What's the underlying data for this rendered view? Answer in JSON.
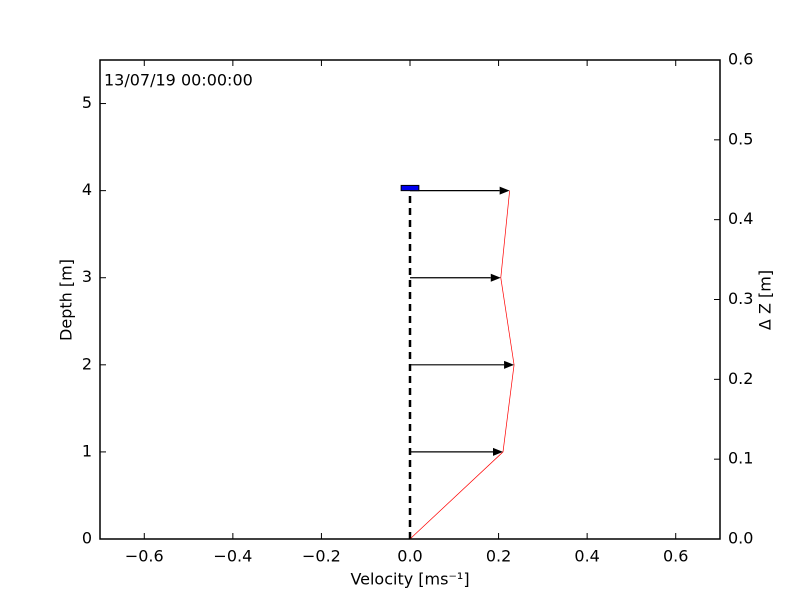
{
  "chart_data": {
    "type": "velocity-profile",
    "annotation": "13/07/19 00:00:00",
    "x_label": "Velocity [ms⁻¹]",
    "y_label": "Depth [m]",
    "y2_label": "Δ Z [m]",
    "xlim": [
      -0.7,
      0.7
    ],
    "ylim": [
      0,
      5.5
    ],
    "y2lim": [
      0,
      0.6
    ],
    "xticks": [
      {
        "value": -0.6,
        "label": "−0.6"
      },
      {
        "value": -0.4,
        "label": "−0.4"
      },
      {
        "value": -0.2,
        "label": "−0.2"
      },
      {
        "value": 0,
        "label": "0.0"
      },
      {
        "value": 0.2,
        "label": "0.2"
      },
      {
        "value": 0.4,
        "label": "0.4"
      },
      {
        "value": 0.6,
        "label": "0.6"
      }
    ],
    "yticks": [
      0,
      1,
      2,
      3,
      4,
      5
    ],
    "y2ticks": [
      {
        "value": 0,
        "label": "0.0"
      },
      {
        "value": 0.1,
        "label": "0.1"
      },
      {
        "value": 0.2,
        "label": "0.2"
      },
      {
        "value": 0.3,
        "label": "0.3"
      },
      {
        "value": 0.4,
        "label": "0.4"
      },
      {
        "value": 0.5,
        "label": "0.5"
      },
      {
        "value": 0.6,
        "label": "0.6"
      }
    ],
    "depth": [
      0,
      1,
      2,
      3,
      4
    ],
    "velocity": [
      0,
      0.21,
      0.235,
      0.205,
      0.225
    ],
    "profile_color": "#ff0000",
    "arrow_color": "#000000",
    "surface": {
      "x": [
        -0.02,
        0.02
      ],
      "depth": [
        4,
        4.06
      ],
      "color": "#0000ee"
    }
  }
}
